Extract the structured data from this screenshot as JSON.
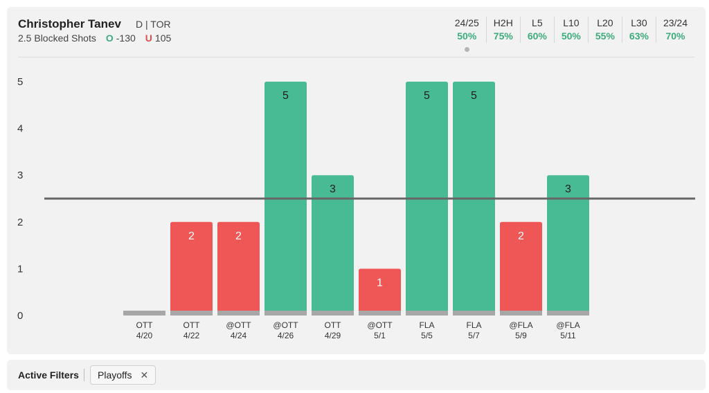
{
  "player": {
    "name": "Christopher Tanev",
    "meta": "D | TOR",
    "prop": "2.5 Blocked Shots",
    "over_label": "O",
    "over_odds": "-130",
    "under_label": "U",
    "under_odds": "105"
  },
  "stats": [
    {
      "label": "24/25",
      "value": "50%"
    },
    {
      "label": "H2H",
      "value": "75%"
    },
    {
      "label": "L5",
      "value": "60%"
    },
    {
      "label": "L10",
      "value": "50%"
    },
    {
      "label": "L20",
      "value": "55%"
    },
    {
      "label": "L30",
      "value": "63%"
    },
    {
      "label": "23/24",
      "value": "70%"
    }
  ],
  "filters": {
    "label": "Active Filters",
    "chip": "Playoffs",
    "close_icon": "close-icon"
  },
  "colors": {
    "over": "#49bb94",
    "under": "#ef5656",
    "zero": "#a7a7a7",
    "line": "#666666",
    "accent_green": "#3dab7e",
    "accent_red": "#e24b4b"
  },
  "chart_data": {
    "type": "bar",
    "threshold": 2.5,
    "ylim": [
      0,
      5
    ],
    "yticks": [
      "0",
      "1",
      "2",
      "3",
      "4",
      "5"
    ],
    "categories": [
      {
        "opp": "OTT",
        "date": "4/20"
      },
      {
        "opp": "OTT",
        "date": "4/22"
      },
      {
        "opp": "@OTT",
        "date": "4/24"
      },
      {
        "opp": "@OTT",
        "date": "4/26"
      },
      {
        "opp": "OTT",
        "date": "4/29"
      },
      {
        "opp": "@OTT",
        "date": "5/1"
      },
      {
        "opp": "FLA",
        "date": "5/5"
      },
      {
        "opp": "FLA",
        "date": "5/7"
      },
      {
        "opp": "@FLA",
        "date": "5/9"
      },
      {
        "opp": "@FLA",
        "date": "5/11"
      }
    ],
    "values": [
      0,
      2,
      2,
      5,
      3,
      1,
      5,
      5,
      2,
      3
    ]
  }
}
